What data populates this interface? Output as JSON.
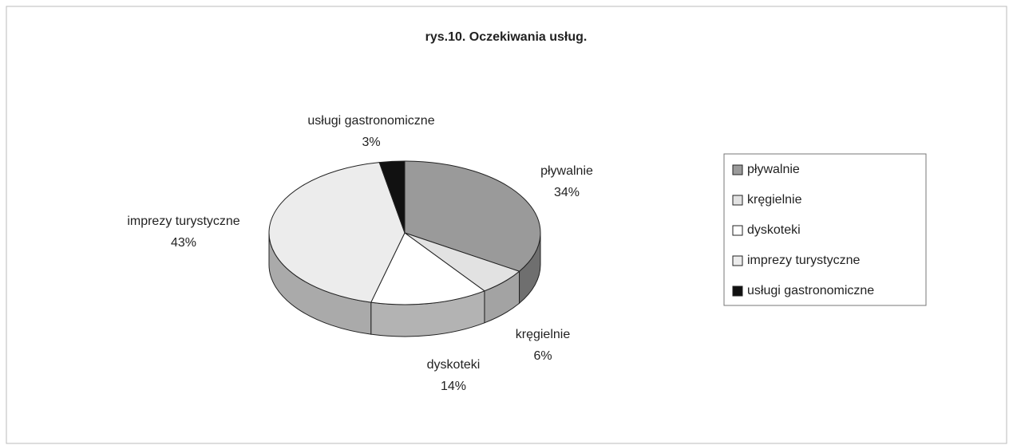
{
  "chart_data": {
    "type": "pie",
    "title": "rys.10. Oczekiwania usług.",
    "categories": [
      "pływalnie",
      "kręgielnie",
      "dyskoteki",
      "imprezy turystyczne",
      "usługi gastronomiczne"
    ],
    "values": [
      34,
      6,
      14,
      43,
      3
    ],
    "value_labels": [
      "34%",
      "6%",
      "14%",
      "43%",
      "3%"
    ],
    "colors": [
      "#9a9a9a",
      "#e2e2e2",
      "#ffffff",
      "#ececec",
      "#111111"
    ],
    "legend": "right"
  }
}
